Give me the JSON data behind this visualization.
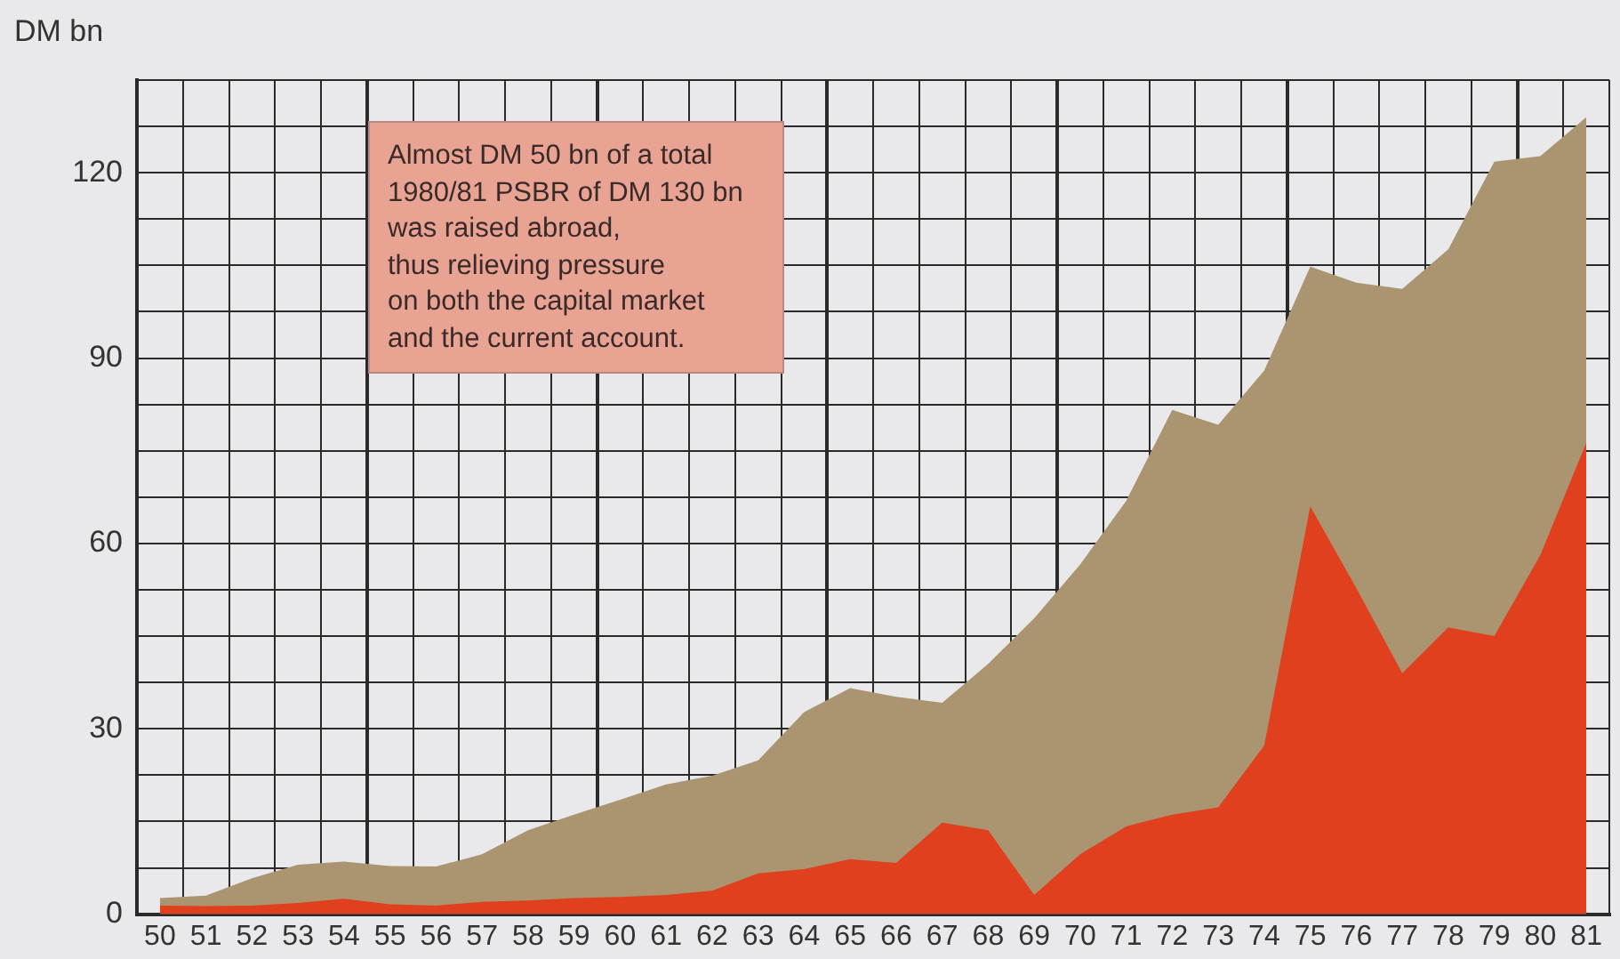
{
  "chart_data": {
    "type": "area",
    "ylabel": "DM bn",
    "annotations": [
      "Almost DM 50 bn of a total\n1980/81 PSBR of DM 130 bn\nwas raised abroad,\nthus relieving pressure\non both the capital market\nand the current account."
    ],
    "categories": [
      "50",
      "51",
      "52",
      "53",
      "54",
      "55",
      "56",
      "57",
      "58",
      "59",
      "60",
      "61",
      "62",
      "63",
      "64",
      "65",
      "66",
      "67",
      "68",
      "69",
      "70",
      "71",
      "72",
      "73",
      "74",
      "75",
      "76",
      "77",
      "78",
      "79",
      "80",
      "81"
    ],
    "series": [
      {
        "color": "#ab9470",
        "values": [
          2.6,
          3,
          5.8,
          8,
          8.5,
          7.8,
          7.7,
          9.7,
          13.6,
          16.1,
          18.5,
          21,
          22.4,
          24.9,
          32.7,
          36.6,
          35.2,
          34.2,
          40.5,
          47.9,
          56.6,
          66.9,
          81.6,
          79.2,
          88,
          104.8,
          102.2,
          101.2,
          107.6,
          121.8,
          122.7,
          129
        ]
      },
      {
        "color": "#e0401e",
        "values": [
          1.4,
          1.3,
          1.4,
          1.8,
          2.5,
          1.6,
          1.4,
          2,
          2.2,
          2.6,
          2.8,
          3.1,
          3.8,
          6.6,
          7.3,
          8.9,
          8.3,
          14.8,
          13.6,
          3.1,
          9.7,
          14.2,
          16.1,
          17.3,
          27.3,
          66,
          52.8,
          39,
          46.4,
          45,
          58.1,
          76.3
        ]
      }
    ],
    "ylim": [
      0,
      135
    ],
    "yticks": [
      0,
      {
        "value": 7.5,
        "label": null
      },
      {
        "value": 15,
        "label": null
      },
      {
        "value": 22.5,
        "label": null
      },
      30,
      {
        "value": 37.5,
        "label": null
      },
      {
        "value": 45,
        "label": null
      },
      {
        "value": 52.5,
        "label": null
      },
      60,
      {
        "value": 67.5,
        "label": null
      },
      {
        "value": 75,
        "label": null
      },
      {
        "value": 82.5,
        "label": null
      },
      90,
      {
        "value": 97.5,
        "label": null
      },
      {
        "value": 105,
        "label": null
      },
      {
        "value": 112.5,
        "label": null
      },
      120,
      {
        "value": 127.5,
        "label": null
      },
      {
        "value": 135,
        "label": null
      }
    ],
    "grid": true,
    "legend": false
  }
}
